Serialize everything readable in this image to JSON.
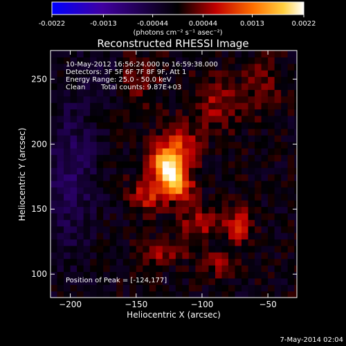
{
  "chart_data": {
    "type": "heatmap",
    "title": "Reconstructed RHESSI Image",
    "xlabel": "Heliocentric X (arcsec)",
    "ylabel": "Heliocentric Y (arcsec)",
    "xlim": [
      -215,
      -28
    ],
    "ylim": [
      82,
      272
    ],
    "x_ticks": [
      -200,
      -150,
      -100,
      -50
    ],
    "y_ticks": [
      100,
      150,
      200,
      250
    ],
    "colorbar": {
      "min": -0.0022,
      "max": 0.0022,
      "tick_values": [
        -0.0022,
        -0.0013,
        -0.00044,
        0.00044,
        0.0013,
        0.0022
      ],
      "tick_labels": [
        "-0.0022",
        "-0.0013",
        "-0.00044",
        "0.00044",
        "0.0013",
        "0.0022"
      ],
      "label": "(photons cm⁻² s⁻¹ asec⁻²)"
    },
    "annotations": {
      "time_range": "10-May-2012 16:56:24.000 to 16:59:38.000",
      "detectors": "Detectors: 3F 5F 6F 7F 8F 9F, Att 1",
      "energy_range": "Energy Range: 25.0 - 50.0 keV",
      "method": "Clean",
      "total_counts": "Total counts: 9.87E+03",
      "peak": "Position of Peak = [-124,177]"
    },
    "peak": {
      "x": -124,
      "y": 177
    },
    "sources": [
      {
        "x": -124,
        "y": 177,
        "value": 0.0022,
        "sx": 7,
        "sy": 14,
        "angle": 35
      },
      {
        "x": -118,
        "y": 196,
        "value": 0.0011,
        "sx": 10,
        "sy": 12,
        "angle": 0
      },
      {
        "x": -140,
        "y": 162,
        "value": 0.0009,
        "sx": 10,
        "sy": 9,
        "angle": 0
      },
      {
        "x": -90,
        "y": 232,
        "value": 0.0006,
        "sx": 14,
        "sy": 14,
        "angle": 0
      },
      {
        "x": -100,
        "y": 140,
        "value": 0.0007,
        "sx": 12,
        "sy": 8,
        "angle": 0
      },
      {
        "x": -72,
        "y": 138,
        "value": 0.0009,
        "sx": 6,
        "sy": 9,
        "angle": 0
      },
      {
        "x": -130,
        "y": 118,
        "value": 0.0006,
        "sx": 14,
        "sy": 7,
        "angle": 0
      },
      {
        "x": -150,
        "y": 250,
        "value": 0.0005,
        "sx": 12,
        "sy": 14,
        "angle": 0
      },
      {
        "x": -85,
        "y": 108,
        "value": 0.0005,
        "sx": 10,
        "sy": 8,
        "angle": 0
      },
      {
        "x": -55,
        "y": 245,
        "value": 0.0004,
        "sx": 10,
        "sy": 15,
        "angle": 0
      },
      {
        "x": -200,
        "y": 175,
        "value": -0.0006,
        "sx": 14,
        "sy": 40,
        "angle": 0
      },
      {
        "x": -175,
        "y": 250,
        "value": -0.0004,
        "sx": 12,
        "sy": 12,
        "angle": 0
      }
    ],
    "pixel_size": 5,
    "colormap": [
      "#0000ff",
      "#000000",
      "#d80000",
      "#ff9a00",
      "#ffffff"
    ]
  },
  "footer": {
    "date": "7-May-2014 02:04"
  }
}
